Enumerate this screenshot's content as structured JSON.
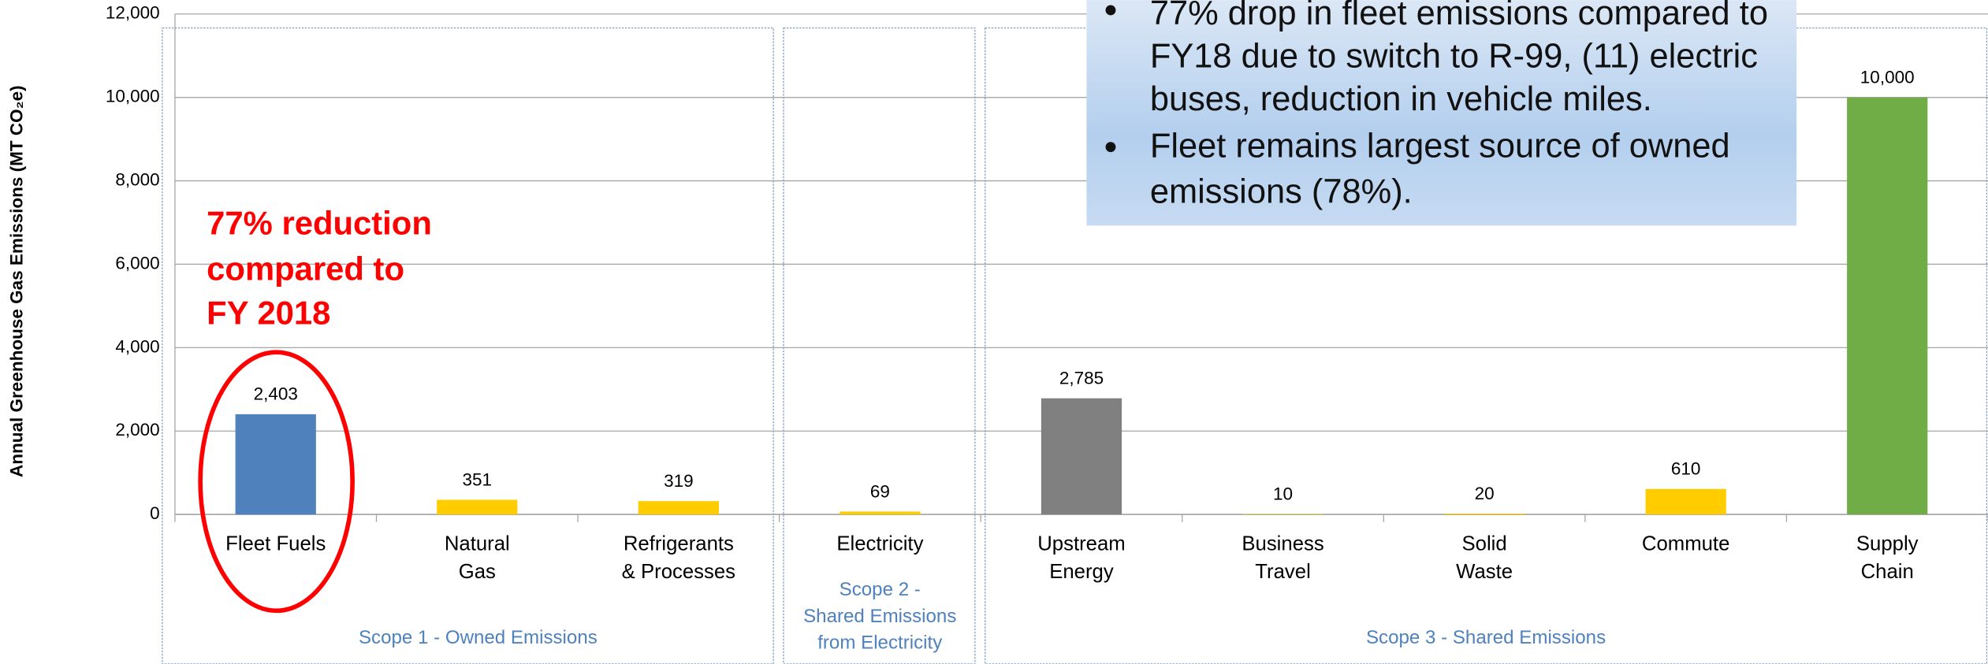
{
  "chart_data": {
    "type": "bar",
    "ylabel": "Annual Greenhouse Gas Emissions (MT CO₂e)",
    "categories": [
      [
        "Fleet Fuels"
      ],
      [
        "Natural",
        "Gas"
      ],
      [
        "Refrigerants",
        "& Processes"
      ],
      [
        "Electricity"
      ],
      [
        "Upstream",
        "Energy"
      ],
      [
        "Business",
        "Travel"
      ],
      [
        "Solid",
        "Waste"
      ],
      [
        "Commute"
      ],
      [
        "Supply",
        "Chain"
      ]
    ],
    "values": [
      2403,
      351,
      319,
      69,
      2785,
      10,
      20,
      610,
      10000
    ],
    "value_labels": [
      "2,403",
      "351",
      "319",
      "69",
      "2,785",
      "10",
      "20",
      "610",
      "10,000"
    ],
    "colors": [
      "#4f81bd",
      "#ffcc00",
      "#ffcc00",
      "#ffcc00",
      "#808080",
      "#ffcc00",
      "#ffcc00",
      "#ffcc00",
      "#70ad47"
    ],
    "ylim": [
      0,
      12000
    ],
    "yticks": [
      0,
      {
        "value": 2000,
        "label": "2,000"
      },
      {
        "value": 4000,
        "label": "4,000"
      },
      {
        "value": 6000,
        "label": "6,000"
      },
      {
        "value": 8000,
        "label": "8,000"
      },
      {
        "value": 10000,
        "label": "10,000"
      },
      {
        "value": 12000,
        "label": "12,000"
      }
    ],
    "grid": true,
    "groups": [
      [
        "Scope 1 - Owned Emissions"
      ],
      [
        "Scope 2 -",
        "Shared Emissions",
        "from Electricity"
      ],
      [
        "Scope 3 - Shared Emissions"
      ]
    ],
    "annotation": [
      "77% reduction",
      "compared to",
      "FY 2018"
    ],
    "callout": [
      [
        "77% drop in fleet emissions compared to",
        "FY18 due to switch to R-99, (11) electric",
        "buses, reduction in vehicle miles."
      ],
      [
        "Fleet remains largest source of owned",
        "emissions (78%)."
      ]
    ]
  }
}
